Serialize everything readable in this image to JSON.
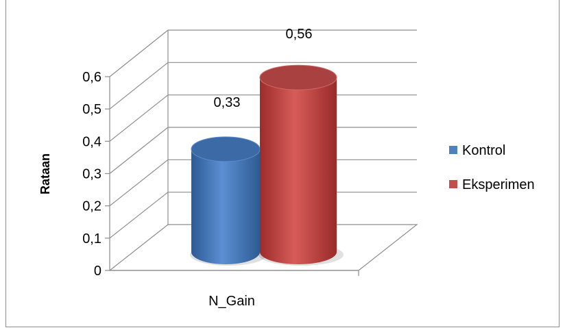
{
  "chart_data": {
    "type": "bar",
    "categories": [
      "N_Gain"
    ],
    "series": [
      {
        "name": "Kontrol",
        "values": [
          0.33
        ],
        "color": "#4f81bd"
      },
      {
        "name": "Eksperimen",
        "values": [
          0.56
        ],
        "color": "#c0504d"
      }
    ],
    "data_labels": [
      "0,33",
      "0,56"
    ],
    "ylabel": "Rataan",
    "xlabel": "",
    "ylim": [
      0,
      0.6
    ],
    "y_ticks": [
      "0",
      "0,1",
      "0,2",
      "0,3",
      "0,4",
      "0,5",
      "0,6"
    ],
    "grid": true,
    "legend_position": "right",
    "style": "3d-cylinder"
  }
}
